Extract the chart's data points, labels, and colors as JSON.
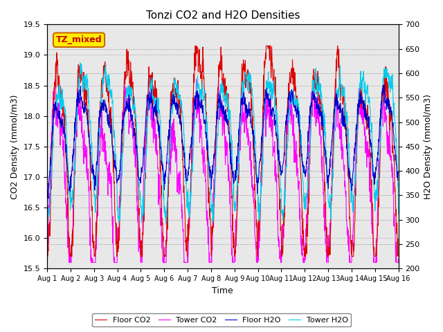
{
  "title": "Tonzi CO2 and H2O Densities",
  "xlabel": "Time",
  "ylabel_left": "CO2 Density (mmol/m3)",
  "ylabel_right": "H2O Density (mmol/m3)",
  "ylim_left": [
    15.5,
    19.5
  ],
  "ylim_right": [
    200,
    700
  ],
  "yticks_left": [
    15.5,
    16.0,
    16.5,
    17.0,
    17.5,
    18.0,
    18.5,
    19.0,
    19.5
  ],
  "yticks_right": [
    200,
    250,
    300,
    350,
    400,
    450,
    500,
    550,
    600,
    650,
    700
  ],
  "xtick_labels": [
    "Aug 1",
    "Aug 2",
    "Aug 3",
    "Aug 4",
    "Aug 5",
    "Aug 6",
    "Aug 7",
    "Aug 8",
    "Aug 9",
    "Aug 10",
    "Aug 11",
    "Aug 12",
    "Aug 13",
    "Aug 14",
    "Aug 15",
    "Aug 16"
  ],
  "n_days": 15,
  "pts_per_day": 96,
  "annotation_text": "TZ_mixed",
  "annotation_color": "#ffee00",
  "annotation_border": "#cc6600",
  "annotation_text_color": "#cc0000",
  "colors": {
    "floor_co2": "#dd0000",
    "tower_co2": "#ff00ff",
    "floor_h2o": "#0000cc",
    "tower_h2o": "#00ccee"
  },
  "legend_labels": [
    "Floor CO2",
    "Tower CO2",
    "Floor H2O",
    "Tower H2O"
  ],
  "bg_color": "#e8e8e8",
  "linewidth": 0.8,
  "grid_color": "#aaaaaa",
  "left_bg": "#d0d0d0",
  "right_bg": "#e8e8e8"
}
